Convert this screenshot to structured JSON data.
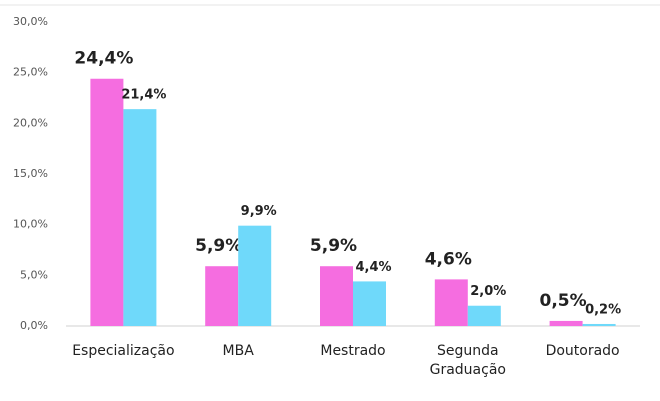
{
  "chart_data": {
    "type": "bar",
    "categories": [
      "Especialização",
      "MBA",
      "Mestrado",
      "Segunda Graduação",
      "Doutorado"
    ],
    "series": [
      {
        "color": "#f56de0",
        "values": [
          24.4,
          5.9,
          5.9,
          4.6,
          0.5
        ],
        "value_labels": [
          "24,4%",
          "5,9%",
          "5,9%",
          "4,6%",
          "0,5%"
        ]
      },
      {
        "color": "#6fd9fa",
        "values": [
          21.4,
          9.9,
          4.4,
          2.0,
          0.2
        ],
        "value_labels": [
          "21,4%",
          "9,9%",
          "4,4%",
          "2,0%",
          "0,2%"
        ]
      }
    ],
    "ylim": [
      0,
      30
    ],
    "yticks": [
      {
        "value": 0,
        "label": "0,0%"
      },
      {
        "value": 5,
        "label": "5,0%"
      },
      {
        "value": 10,
        "label": "10,0%"
      },
      {
        "value": 15,
        "label": "15,0%"
      },
      {
        "value": 20,
        "label": "20,0%"
      },
      {
        "value": 25,
        "label": "25,0%"
      },
      {
        "value": 30,
        "label": "30,0%"
      }
    ],
    "grid": false
  }
}
